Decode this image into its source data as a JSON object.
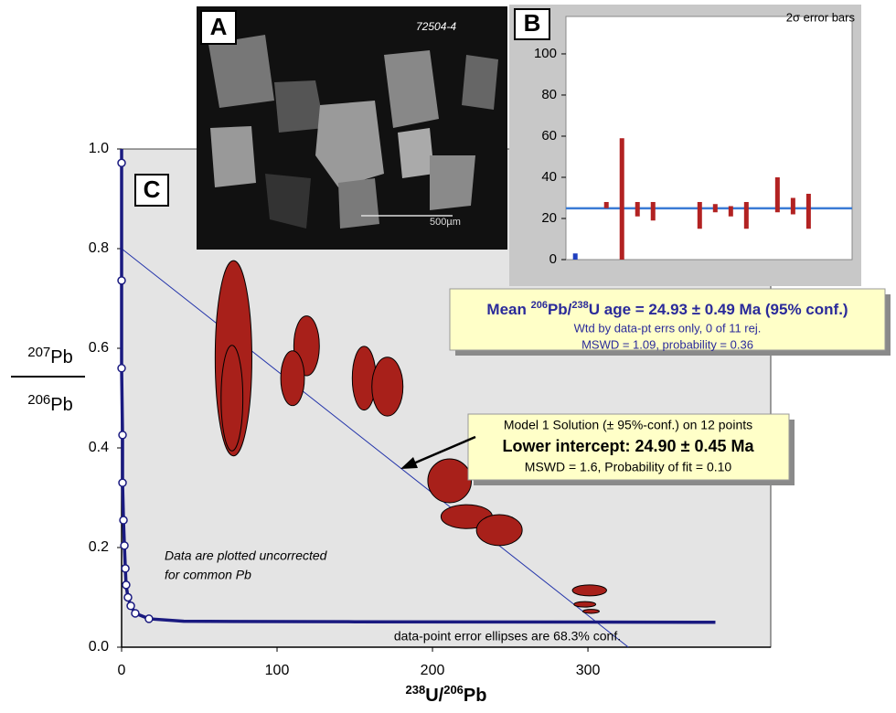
{
  "chart_data": [
    {
      "type": "ellipse",
      "panel_label": "C",
      "xlabel": [
        "238",
        "U/",
        "206",
        "Pb"
      ],
      "ylabel_numerator": [
        "207",
        "Pb"
      ],
      "ylabel_denominator": [
        "206",
        "Pb"
      ],
      "xlim": [
        0,
        417.6
      ],
      "ylim": [
        0,
        1
      ],
      "xticks": [
        0,
        100,
        200,
        300
      ],
      "yticks": [
        {
          "value": 0,
          "label": "0.0"
        },
        0.2,
        0.4,
        0.6,
        0.8,
        {
          "value": 1,
          "label": "1.0"
        }
      ],
      "ellipses": {
        "x": [
          72,
          71,
          119,
          110,
          156,
          171,
          211,
          222,
          243,
          301,
          298,
          302
        ],
        "y": [
          0.58,
          0.5,
          0.605,
          0.54,
          0.54,
          0.523,
          0.334,
          0.262,
          0.235,
          0.114,
          0.086,
          0.072
        ],
        "x_err": [
          11.8,
          7,
          8.2,
          7.6,
          7.6,
          10,
          14,
          16.5,
          14.7,
          11,
          7,
          5.3
        ],
        "y_err": [
          0.196,
          0.106,
          0.06,
          0.055,
          0.064,
          0.059,
          0.044,
          0.024,
          0.031,
          0.011,
          0.0055,
          0.004
        ],
        "color": "#a8201a"
      },
      "concordia": {
        "x": [
          0,
          0,
          0,
          0,
          0.6,
          0.6,
          1.2,
          1.8,
          2.4,
          2.9,
          4.1,
          5.9,
          8.8,
          17.6,
          40,
          150,
          382
        ],
        "y": [
          1,
          0.972,
          0.736,
          0.56,
          0.426,
          0.33,
          0.255,
          0.204,
          0.158,
          0.125,
          0.1,
          0.083,
          0.068,
          0.057,
          0.052,
          0.051,
          0.05
        ],
        "color": "#1a1a80"
      },
      "concordia_markers": {
        "x": [
          0,
          0,
          0,
          0.6,
          0.6,
          1.2,
          1.8,
          2.4,
          2.9,
          4.1,
          5.9,
          8.8,
          17.6
        ],
        "y": [
          0.972,
          0.736,
          0.56,
          0.426,
          0.33,
          0.255,
          0.204,
          0.158,
          0.125,
          0.1,
          0.083,
          0.068,
          0.057
        ]
      },
      "regression": {
        "x": [
          0,
          326
        ],
        "y": [
          0.8,
          0
        ],
        "color": "#2233aa"
      },
      "annotations": [
        "Data are plotted uncorrected",
        "for common Pb",
        "data-point error ellipses are 68.3% conf."
      ],
      "result_box": [
        "Model 1 Solution (± 95%-conf.) on 12 points",
        "Lower intercept: 24.90 ± 0.45 Ma",
        "MSWD = 1.6, Probability of fit = 0.10"
      ]
    },
    {
      "type": "range-bar",
      "panel_label": "B",
      "title": "2σ error bars",
      "xlim": [
        -0.6,
        17.8
      ],
      "ylim": [
        0,
        118.2
      ],
      "yticks": [
        0,
        20,
        40,
        60,
        80,
        100
      ],
      "x": [
        0,
        2,
        3,
        4,
        5,
        8,
        9,
        10,
        11,
        13,
        14,
        15
      ],
      "low": [
        0,
        25,
        0,
        21,
        19,
        15,
        23,
        21,
        15,
        23,
        22,
        15
      ],
      "high": [
        3,
        28,
        59,
        28,
        28,
        28,
        27,
        26,
        28,
        40,
        30,
        32
      ],
      "colors": [
        "#1f3fbf",
        "#b22222",
        "#b22222",
        "#b22222",
        "#b22222",
        "#b22222",
        "#b22222",
        "#b22222",
        "#b22222",
        "#b22222",
        "#b22222",
        "#b22222"
      ],
      "mean": 24.93,
      "mean_color": "#3a7bd5",
      "result_box": {
        "title": [
          "Mean ",
          "206",
          "Pb/",
          "238",
          "U age = 24.93 ± 0.49 Ma (95% conf.)"
        ],
        "lines": [
          "Wtd by data-pt errs only, 0 of 11 rej.",
          "MSWD = 1.09, probability = 0.36"
        ]
      }
    }
  ],
  "image_panel": {
    "label": "A",
    "sample": "72504-4",
    "scale": "500µm"
  }
}
